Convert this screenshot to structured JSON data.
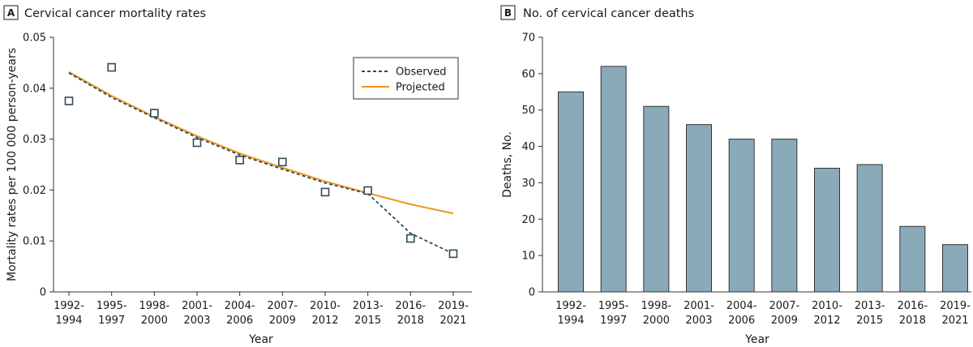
{
  "colors": {
    "observed": "#2e4a5c",
    "projected": "#f0961e",
    "marker": "#2e4a5c",
    "bar_fill": "#8aaab9",
    "bar_stroke": "#333333"
  },
  "chart_data": [
    {
      "panel": "A",
      "type": "line",
      "title": "Cervical cancer mortality rates",
      "xlabel": "Year",
      "ylabel": "Mortality rates per 100 000 person-years",
      "categories": [
        [
          "1992-",
          "1994"
        ],
        [
          "1995-",
          "1997"
        ],
        [
          "1998-",
          "2000"
        ],
        [
          "2001-",
          "2003"
        ],
        [
          "2004-",
          "2006"
        ],
        [
          "2007-",
          "2009"
        ],
        [
          "2010-",
          "2012"
        ],
        [
          "2013-",
          "2015"
        ],
        [
          "2016-",
          "2018"
        ],
        [
          "2019-",
          "2021"
        ]
      ],
      "ylim": [
        0,
        0.05
      ],
      "yticks": [
        0,
        0.01,
        0.02,
        0.03,
        0.04,
        0.05
      ],
      "ytick_labels": [
        "0",
        "0.01",
        "0.02",
        "0.03",
        "0.04",
        "0.05"
      ],
      "legend_position": "top-right",
      "series": [
        {
          "name": "Observed",
          "style": "dashed",
          "values": [
            0.043,
            0.0382,
            0.0342,
            0.0303,
            0.0269,
            0.0241,
            0.0214,
            0.0193,
            0.0115,
            0.0075
          ]
        },
        {
          "name": "Projected",
          "style": "solid",
          "values": [
            0.0432,
            0.0385,
            0.0344,
            0.0306,
            0.0272,
            0.0244,
            0.0217,
            0.0194,
            0.0172,
            0.0154
          ]
        }
      ],
      "points": {
        "name": "Observed rates",
        "values": [
          0.0375,
          0.0441,
          0.0351,
          0.0293,
          0.0259,
          0.0255,
          0.0196,
          0.0199,
          0.0105,
          0.0075
        ]
      }
    },
    {
      "panel": "B",
      "type": "bar",
      "title": "No. of cervical cancer deaths",
      "xlabel": "Year",
      "ylabel": "Deaths, No.",
      "categories": [
        [
          "1992-",
          "1994"
        ],
        [
          "1995-",
          "1997"
        ],
        [
          "1998-",
          "2000"
        ],
        [
          "2001-",
          "2003"
        ],
        [
          "2004-",
          "2006"
        ],
        [
          "2007-",
          "2009"
        ],
        [
          "2010-",
          "2012"
        ],
        [
          "2013-",
          "2015"
        ],
        [
          "2016-",
          "2018"
        ],
        [
          "2019-",
          "2021"
        ]
      ],
      "values": [
        55,
        62,
        51,
        46,
        42,
        42,
        34,
        35,
        18,
        13
      ],
      "ylim": [
        0,
        70
      ],
      "yticks": [
        0,
        10,
        20,
        30,
        40,
        50,
        60,
        70
      ],
      "ytick_labels": [
        "0",
        "10",
        "20",
        "30",
        "40",
        "50",
        "60",
        "70"
      ]
    }
  ]
}
